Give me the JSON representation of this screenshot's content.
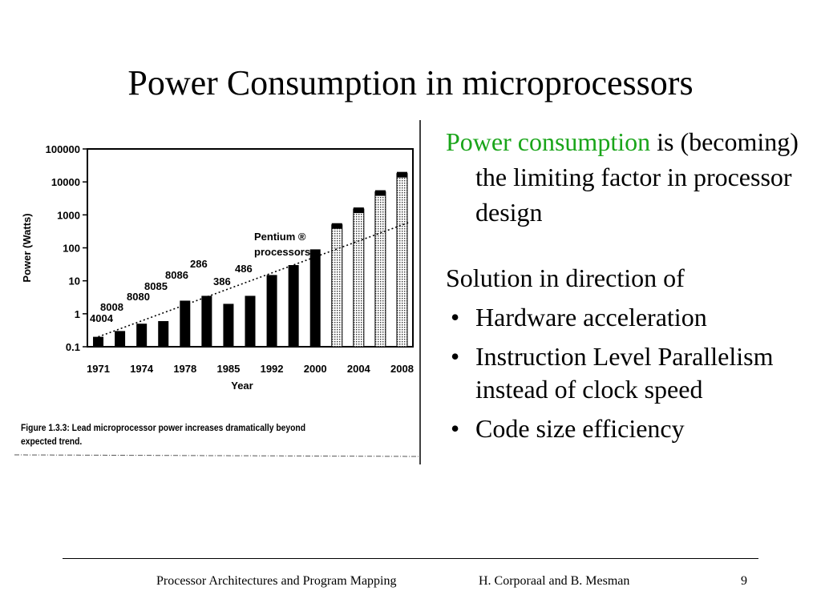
{
  "slide": {
    "title": "Power Consumption in microprocessors",
    "paragraph1": {
      "highlight": "Power consumption",
      "rest": " is (becoming) the limiting factor in processor design"
    },
    "paragraph2": "Solution in direction of",
    "bullet_symbol": "•",
    "bullets": [
      "Hardware acceleration",
      "Instruction Level Parallelism instead of clock speed",
      "Code size efficiency"
    ],
    "highlight_color": "#1aa51a"
  },
  "figure": {
    "caption": "Figure 1.3.3: Lead microprocessor power increases dramatically beyond expected trend.",
    "annotation": "Pentium ® processors"
  },
  "chart_data": {
    "type": "bar",
    "xlabel": "Year",
    "ylabel": "Power (Watts)",
    "y_scale": "log",
    "ylim": [
      0.1,
      100000
    ],
    "y_ticks": [
      "100000",
      "10000",
      "1000",
      "100",
      "10",
      "1",
      "0.1"
    ],
    "x_ticks": [
      "1971",
      "1974",
      "1978",
      "1985",
      "1992",
      "2000",
      "2004",
      "2008"
    ],
    "bar_labels": [
      "4004",
      "8008",
      "8080",
      "8085",
      "8086",
      "286",
      "386",
      "486"
    ],
    "bars": [
      {
        "value": 0.2,
        "style": "solid"
      },
      {
        "value": 0.3,
        "style": "solid"
      },
      {
        "value": 0.5,
        "style": "solid"
      },
      {
        "value": 0.6,
        "style": "solid"
      },
      {
        "value": 2.5,
        "style": "solid"
      },
      {
        "value": 3.5,
        "style": "solid"
      },
      {
        "value": 2,
        "style": "solid"
      },
      {
        "value": 3.5,
        "style": "solid"
      },
      {
        "value": 15,
        "style": "solid"
      },
      {
        "value": 30,
        "style": "solid"
      },
      {
        "value": 90,
        "style": "solid"
      },
      {
        "value": 500,
        "style": "dotted"
      },
      {
        "value": 1500,
        "style": "dotted"
      },
      {
        "value": 5000,
        "style": "dotted"
      },
      {
        "value": 18000,
        "style": "dotted"
      }
    ],
    "trend": {
      "from": 0.2,
      "to": 600
    }
  },
  "footer": {
    "course": "Processor Architectures and Program Mapping",
    "authors": "H. Corporaal and B. Mesman",
    "page": "9"
  }
}
